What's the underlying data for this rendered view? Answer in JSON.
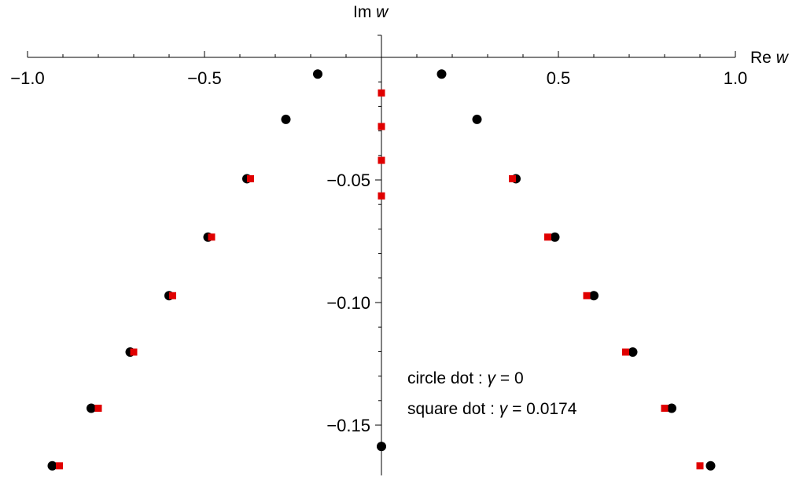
{
  "chart_data": {
    "type": "scatter",
    "xlabel_prefix": "Re",
    "xlabel_var": "w",
    "ylabel_prefix": "Im",
    "ylabel_var": "w",
    "xlim": [
      -1.0,
      1.0
    ],
    "ylim": [
      -0.1705,
      0.009
    ],
    "x_ticks": [
      {
        "value": -1.0,
        "label": "−1.0"
      },
      {
        "value": -0.5,
        "label": "−0.5"
      },
      {
        "value": 0.5,
        "label": "0.5"
      },
      {
        "value": 1.0,
        "label": "1.0"
      }
    ],
    "x_minor_ticks": [
      -0.9,
      -0.8,
      -0.7,
      -0.6,
      -0.4,
      -0.3,
      -0.2,
      -0.1,
      0.1,
      0.2,
      0.3,
      0.4,
      0.6,
      0.7,
      0.8,
      0.9
    ],
    "y_ticks": [
      {
        "value": -0.05,
        "label": "−0.05"
      },
      {
        "value": -0.1,
        "label": "−0.10"
      },
      {
        "value": -0.15,
        "label": "−0.15"
      }
    ],
    "y_minor_ticks": [
      -0.01,
      -0.02,
      -0.03,
      -0.04,
      -0.06,
      -0.07,
      -0.08,
      -0.09,
      -0.11,
      -0.12,
      -0.13,
      -0.14,
      -0.16
    ],
    "series": [
      {
        "marker": "circle",
        "color": "#000000",
        "points": [
          [
            -0.18,
            -0.0068
          ],
          [
            0.17,
            -0.0068
          ],
          [
            -0.27,
            -0.0253
          ],
          [
            0.27,
            -0.0253
          ],
          [
            -0.38,
            -0.0495
          ],
          [
            0.38,
            -0.0495
          ],
          [
            -0.49,
            -0.0733
          ],
          [
            0.49,
            -0.0733
          ],
          [
            -0.6,
            -0.0972
          ],
          [
            0.6,
            -0.0972
          ],
          [
            -0.71,
            -0.1202
          ],
          [
            0.71,
            -0.1202
          ],
          [
            -0.82,
            -0.1431
          ],
          [
            0.82,
            -0.1431
          ],
          [
            -0.93,
            -0.1666
          ],
          [
            0.93,
            -0.1666
          ],
          [
            0.0,
            -0.1587
          ]
        ]
      },
      {
        "marker": "square",
        "color": "#e00000",
        "points": [
          [
            0.0,
            -0.0145
          ],
          [
            0.0,
            -0.0282
          ],
          [
            0.0,
            -0.042
          ],
          [
            0.0,
            -0.0565
          ],
          [
            -0.37,
            -0.0495
          ],
          [
            0.37,
            -0.0495
          ],
          [
            -0.48,
            -0.0733
          ],
          [
            0.47,
            -0.0733
          ],
          [
            -0.59,
            -0.0972
          ],
          [
            0.58,
            -0.0972
          ],
          [
            -0.7,
            -0.1202
          ],
          [
            0.69,
            -0.1202
          ],
          [
            -0.8,
            -0.1431
          ],
          [
            0.8,
            -0.1431
          ],
          [
            -0.91,
            -0.1666
          ],
          [
            0.9,
            -0.1666
          ]
        ]
      }
    ],
    "legend_lines": [
      {
        "text": "circle dot :  ",
        "var": "γ",
        "rest": " = 0"
      },
      {
        "text": "square dot :  ",
        "var": "γ",
        "rest": " = 0.0174"
      }
    ]
  }
}
